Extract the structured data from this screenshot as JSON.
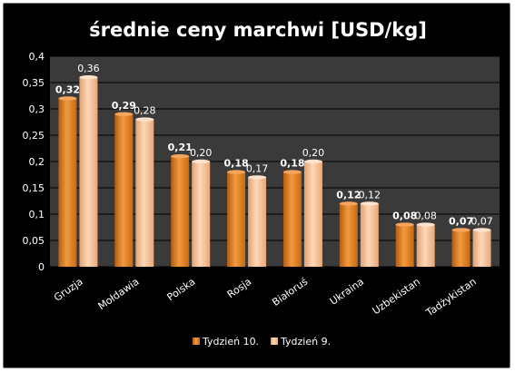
{
  "chart_data": {
    "type": "bar",
    "title": "średnie ceny marchwi [USD/kg]",
    "categories": [
      "Gruzja",
      "Mołdawia",
      "Polska",
      "Rosja",
      "Białoruś",
      "Ukraina",
      "Uzbekistan",
      "Tadżykistan"
    ],
    "series": [
      {
        "name": "Tydzień 10.",
        "values": [
          0.32,
          0.29,
          0.21,
          0.18,
          0.18,
          0.12,
          0.08,
          0.07
        ],
        "labels": [
          "0,32",
          "0,29",
          "0,21",
          "0,18",
          "0,18",
          "0,12",
          "0,08",
          "0,07"
        ],
        "color": "#e6801f"
      },
      {
        "name": "Tydzień 9.",
        "values": [
          0.36,
          0.28,
          0.2,
          0.17,
          0.2,
          0.12,
          0.08,
          0.07
        ],
        "labels": [
          "0,36",
          "0,28",
          "0,20",
          "0,17",
          "0,20",
          "0,12",
          "0,08",
          "0,07"
        ],
        "color": "#f6be93"
      }
    ],
    "ylim": [
      0,
      0.4
    ],
    "yticks": [
      0,
      0.05,
      0.1,
      0.15,
      0.2,
      0.25,
      0.3,
      0.35,
      0.4
    ],
    "ytick_labels": [
      "0",
      "0,05",
      "0,1",
      "0,15",
      "0,2",
      "0,25",
      "0,3",
      "0,35",
      "0,4"
    ],
    "grid": true,
    "legend_position": "bottom",
    "colors": {
      "background": "#000000",
      "plot_background": "#3a3a3a",
      "gridline": "#000000",
      "text": "#ffffff"
    }
  }
}
